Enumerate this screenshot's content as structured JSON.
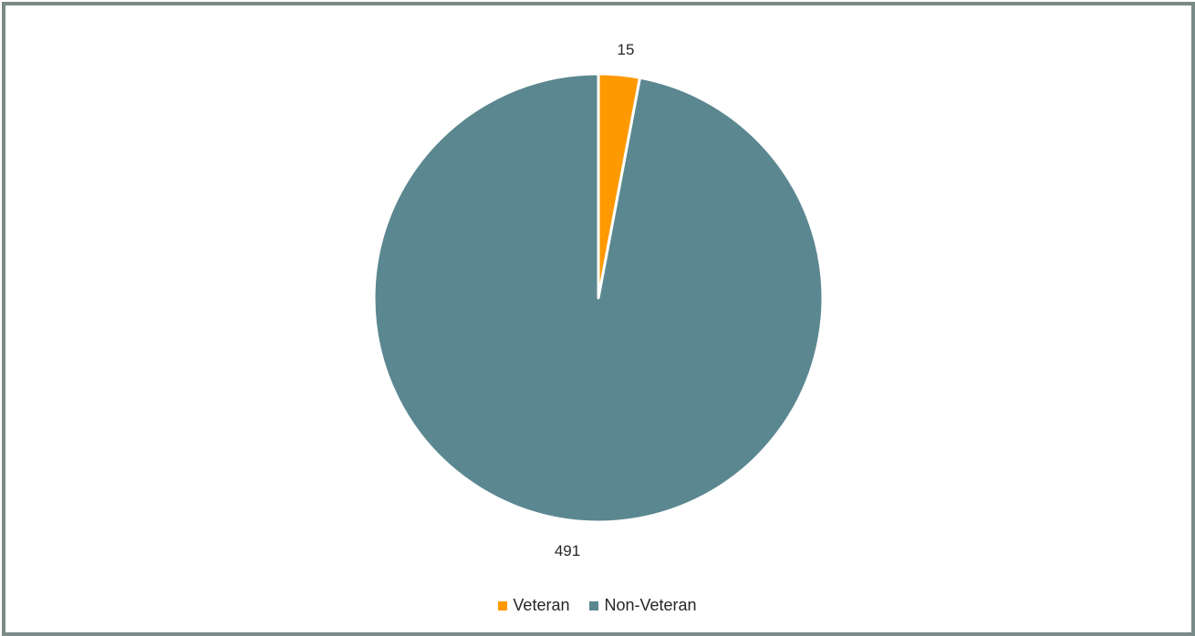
{
  "chart_data": {
    "type": "pie",
    "categories": [
      "Veteran",
      "Non-Veteran"
    ],
    "values": [
      15,
      491
    ],
    "colors": [
      "#ff9900",
      "#5b8790"
    ],
    "data_labels": [
      "15",
      "491"
    ],
    "legend_position": "bottom",
    "start_angle_deg": 0,
    "direction": "clockwise"
  },
  "legend": {
    "items": [
      {
        "label": "Veteran",
        "color": "#ff9900"
      },
      {
        "label": "Non-Veteran",
        "color": "#5b8790"
      }
    ]
  }
}
